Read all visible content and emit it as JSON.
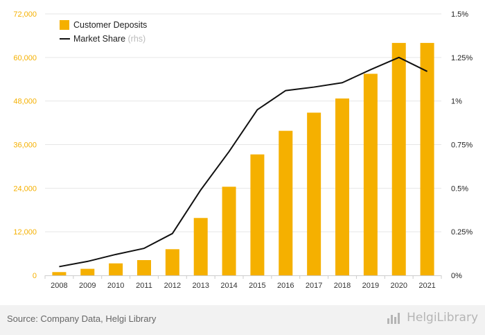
{
  "chart_data": {
    "type": "bar",
    "categories": [
      "2008",
      "2009",
      "2010",
      "2011",
      "2012",
      "2013",
      "2014",
      "2015",
      "2016",
      "2017",
      "2018",
      "2019",
      "2020",
      "2021"
    ],
    "series": [
      {
        "name": "Customer Deposits",
        "kind": "bar",
        "axis": "left",
        "values": [
          900,
          1800,
          3300,
          4200,
          7200,
          15800,
          24400,
          33300,
          39800,
          44800,
          48700,
          55500,
          64000,
          64000
        ]
      },
      {
        "name": "Market Share",
        "axis_note": "(rhs)",
        "kind": "line",
        "axis": "right",
        "values": [
          0.05,
          0.08,
          0.12,
          0.155,
          0.24,
          0.49,
          0.71,
          0.95,
          1.06,
          1.08,
          1.105,
          1.18,
          1.25,
          1.17
        ]
      }
    ],
    "left_axis": {
      "ylim": [
        0,
        72000
      ],
      "ticks": [
        0,
        12000,
        24000,
        36000,
        48000,
        60000,
        72000
      ],
      "tick_labels": [
        "0",
        "12,000",
        "24,000",
        "36,000",
        "48,000",
        "60,000",
        "72,000"
      ]
    },
    "right_axis": {
      "ylim": [
        0,
        1.5
      ],
      "ticks": [
        0,
        0.25,
        0.5,
        0.75,
        1,
        1.25,
        1.5
      ],
      "tick_labels": [
        "0%",
        "0.25%",
        "0.5%",
        "0.75%",
        "1%",
        "1.25%",
        "1.5%"
      ]
    },
    "grid": true,
    "legend_position": "top-left",
    "colors": {
      "bars": "#f5b000",
      "line": "#111111",
      "left_ticks": "#f5b000",
      "grid": "#e6e6e6"
    }
  },
  "footer": {
    "source": "Source: Company Data, Helgi Library",
    "brand": "HelgiLibrary"
  }
}
